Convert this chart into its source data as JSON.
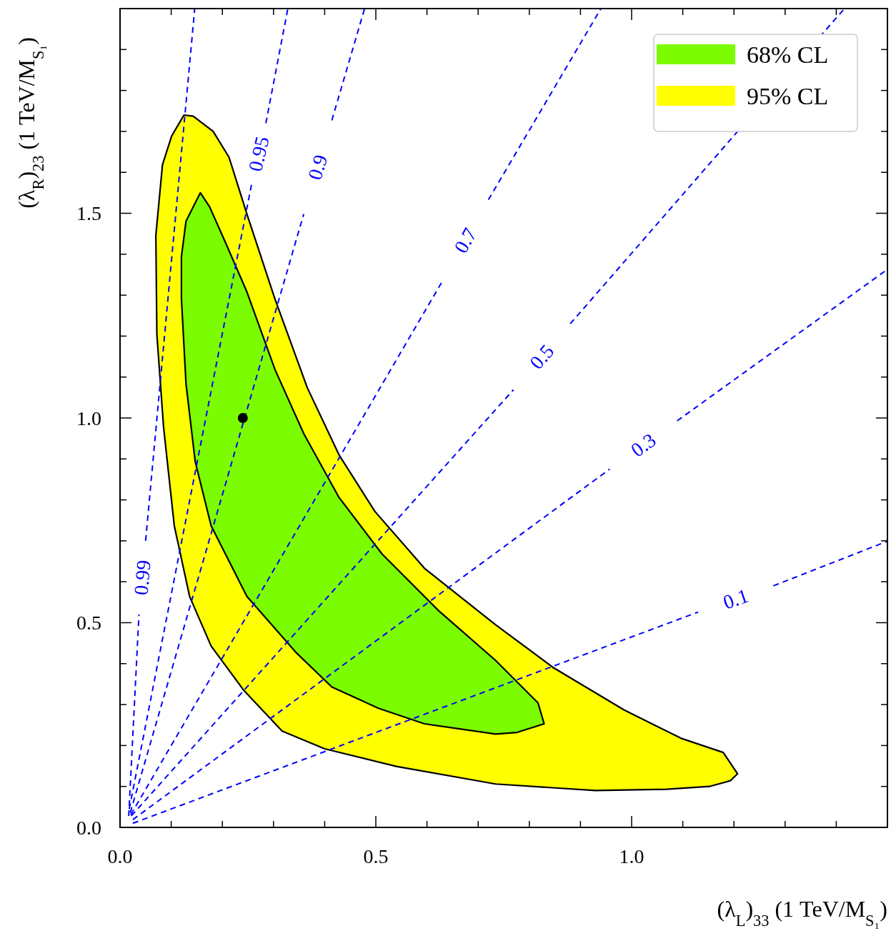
{
  "chart_data": {
    "type": "line",
    "xlabel": "(λ$_{L}$)$_{33}$ (1 TeV/M$_{S₁}$)",
    "ylabel": "(λ$_{R}$)$_{23}$ (1 TeV/M$_{S₁}$)",
    "legend": "top right",
    "xlim": [
      0,
      1.5
    ],
    "ylim": [
      0,
      2
    ],
    "xticks": [
      {
        "value": 0,
        "label": "0.0"
      },
      {
        "value": 0.1,
        "label": null
      },
      {
        "value": 0.2,
        "label": null
      },
      {
        "value": 0.3,
        "label": null
      },
      {
        "value": 0.4,
        "label": null
      },
      {
        "value": 0.5,
        "label": "0.5"
      },
      {
        "value": 0.6,
        "label": null
      },
      {
        "value": 0.7,
        "label": null
      },
      {
        "value": 0.8,
        "label": null
      },
      {
        "value": 0.9,
        "label": null
      },
      {
        "value": 1,
        "label": "1.0"
      },
      {
        "value": 1.1,
        "label": null
      },
      {
        "value": 1.2,
        "label": null
      },
      {
        "value": 1.3,
        "label": null
      },
      {
        "value": 1.4,
        "label": null
      },
      {
        "value": 1.5,
        "label": null
      }
    ],
    "yticks": [
      {
        "value": 0,
        "label": "0.0"
      },
      {
        "value": 0.1,
        "label": null
      },
      {
        "value": 0.2,
        "label": null
      },
      {
        "value": 0.3,
        "label": null
      },
      {
        "value": 0.4,
        "label": null
      },
      {
        "value": 0.5,
        "label": "0.5"
      },
      {
        "value": 0.6,
        "label": null
      },
      {
        "value": 0.7,
        "label": null
      },
      {
        "value": 0.8,
        "label": null
      },
      {
        "value": 0.9,
        "label": null
      },
      {
        "value": 1,
        "label": "1.0"
      },
      {
        "value": 1.1,
        "label": null
      },
      {
        "value": 1.2,
        "label": null
      },
      {
        "value": 1.3,
        "label": null
      },
      {
        "value": 1.4,
        "label": null
      },
      {
        "value": 1.5,
        "label": "1.5"
      },
      {
        "value": 1.6,
        "label": null
      },
      {
        "value": 1.7,
        "label": null
      },
      {
        "value": 1.8,
        "label": null
      },
      {
        "value": 1.9,
        "label": null
      },
      {
        "value": 2,
        "label": null
      }
    ],
    "series": [
      {
        "type": "area",
        "name": "95% CL",
        "color": "#ffff00",
        "x": [
          0.125,
          0.143,
          0.182,
          0.213,
          0.248,
          0.303,
          0.366,
          0.428,
          0.498,
          0.595,
          0.734,
          0.846,
          0.985,
          1.096,
          1.179,
          1.207,
          1.193,
          1.152,
          1.068,
          0.929,
          0.734,
          0.54,
          0.4,
          0.317,
          0.241,
          0.178,
          0.136,
          0.106,
          0.085,
          0.072,
          0.07,
          0.083,
          0.101
        ],
        "values": [
          1.74,
          1.737,
          1.7,
          1.637,
          1.498,
          1.29,
          1.074,
          0.91,
          0.772,
          0.633,
          0.495,
          0.391,
          0.287,
          0.218,
          0.183,
          0.131,
          0.114,
          0.1,
          0.093,
          0.09,
          0.106,
          0.149,
          0.192,
          0.235,
          0.336,
          0.443,
          0.564,
          0.737,
          0.979,
          1.204,
          1.446,
          1.619,
          1.689
        ]
      },
      {
        "type": "area",
        "name": "68% CL",
        "color": "#7cfc00",
        "x": [
          0.157,
          0.175,
          0.206,
          0.248,
          0.303,
          0.359,
          0.428,
          0.512,
          0.623,
          0.734,
          0.817,
          0.829,
          0.776,
          0.734,
          0.595,
          0.505,
          0.414,
          0.345,
          0.248,
          0.178,
          0.147,
          0.129,
          0.12,
          0.12,
          0.129
        ],
        "values": [
          1.55,
          1.516,
          1.429,
          1.308,
          1.118,
          0.962,
          0.806,
          0.668,
          0.529,
          0.408,
          0.304,
          0.253,
          0.232,
          0.228,
          0.253,
          0.291,
          0.343,
          0.426,
          0.564,
          0.737,
          0.893,
          1.083,
          1.291,
          1.394,
          1.481
        ]
      },
      {
        "type": "line",
        "name": "0.1",
        "color": "#0000ff",
        "line_style": "dashed",
        "x": [
          0.025,
          1.13,
          null,
          1.277,
          1.5
        ],
        "values": [
          0.01,
          0.526,
          null,
          0.59,
          0.699
        ]
      },
      {
        "type": "line",
        "name": "0.3",
        "color": "#0000ff",
        "line_style": "dashed",
        "x": [
          0.025,
          0.957,
          null,
          1.089,
          1.5
        ],
        "values": [
          0.019,
          0.875,
          null,
          0.993,
          1.363
        ]
      },
      {
        "type": "line",
        "name": "0.5",
        "color": "#0000ff",
        "line_style": "dashed",
        "x": [
          0.022,
          0.769,
          null,
          0.88,
          1.416
        ],
        "values": [
          0.028,
          1.069,
          null,
          1.23,
          2.0
        ]
      },
      {
        "type": "line",
        "name": "0.7",
        "color": "#0000ff",
        "line_style": "dashed",
        "x": [
          0.021,
          0.63,
          null,
          0.72,
          0.94
        ],
        "values": [
          0.031,
          1.334,
          null,
          1.533,
          2.0
        ]
      },
      {
        "type": "line",
        "name": "0.9",
        "color": "#0000ff",
        "line_style": "dashed",
        "x": [
          0.02,
          0.359,
          null,
          0.414,
          0.478
        ],
        "values": [
          0.036,
          1.498,
          null,
          1.727,
          2.0
        ]
      },
      {
        "type": "line",
        "name": "0.95",
        "color": "#0000ff",
        "line_style": "dashed",
        "x": [
          0.018,
          0.257,
          null,
          0.285,
          0.328
        ],
        "values": [
          0.045,
          1.57,
          null,
          1.72,
          2.0
        ]
      },
      {
        "type": "line",
        "name": "0.99",
        "color": "#0000ff",
        "line_style": "dashed",
        "x": [
          0.017,
          0.037,
          null,
          0.05,
          0.146
        ],
        "values": [
          0.028,
          0.52,
          null,
          0.7,
          2.0
        ]
      },
      {
        "type": "scatter",
        "color": "#000000",
        "marker": "circle",
        "x": [
          0.24
        ],
        "values": [
          1.0
        ]
      }
    ]
  }
}
